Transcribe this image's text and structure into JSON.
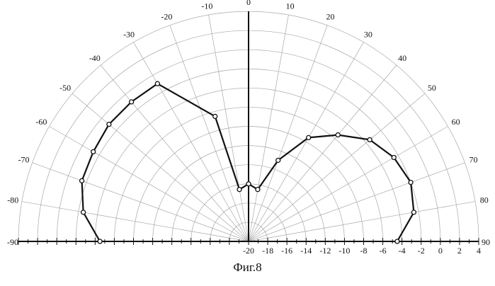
{
  "caption": "Фиг.8",
  "chart_data": {
    "type": "polar-line",
    "angle_unit": "degrees",
    "angle_ticks": [
      -90,
      -80,
      -70,
      -60,
      -50,
      -40,
      -30,
      -20,
      -10,
      0,
      10,
      20,
      30,
      40,
      50,
      60,
      70,
      80,
      90
    ],
    "angle_tick_labels": [
      "-90",
      "-80",
      "-70",
      "-60",
      "-50",
      "-40",
      "-30",
      "-20",
      "-10",
      "0",
      "10",
      "20",
      "30",
      "40",
      "50",
      "60",
      "70",
      "80",
      "90"
    ],
    "radial_ticks": [
      -20,
      -18,
      -16,
      -14,
      -12,
      -10,
      -8,
      -6,
      -4,
      -2,
      0,
      2,
      4
    ],
    "radial_tick_labels": [
      "-20",
      "-18",
      "-16",
      "-14",
      "-12",
      "-10",
      "-8",
      "-6",
      "-4",
      "-2",
      "0",
      "2",
      "4"
    ],
    "rlim": [
      -20,
      4
    ],
    "grid": true,
    "series": [
      {
        "points": [
          {
            "angle": -90,
            "r": -4.5
          },
          {
            "angle": -80,
            "r": -2.5
          },
          {
            "angle": -70,
            "r": -1.5
          },
          {
            "angle": -60,
            "r": -1.3
          },
          {
            "angle": -50,
            "r": -1.0
          },
          {
            "angle": -40,
            "r": -1.0
          },
          {
            "angle": -30,
            "r": -1.0
          },
          {
            "angle": -15,
            "r": -6.5
          },
          {
            "angle": -10,
            "r": -14.5
          },
          {
            "angle": 0,
            "r": -14.0
          },
          {
            "angle": 10,
            "r": -14.5
          },
          {
            "angle": 20,
            "r": -11.0
          },
          {
            "angle": 30,
            "r": -7.5
          },
          {
            "angle": 40,
            "r": -5.5
          },
          {
            "angle": 50,
            "r": -3.5
          },
          {
            "angle": 60,
            "r": -2.5
          },
          {
            "angle": 70,
            "r": -2.0
          },
          {
            "angle": 80,
            "r": -2.5
          },
          {
            "angle": 90,
            "r": -4.5
          }
        ]
      }
    ]
  }
}
